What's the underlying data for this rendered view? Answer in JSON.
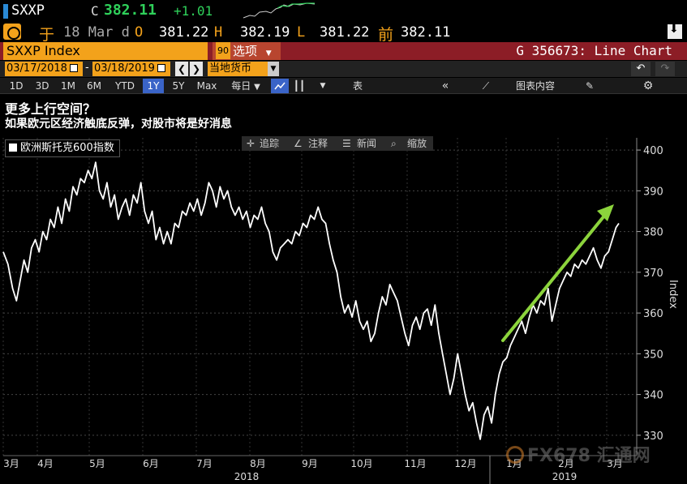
{
  "ticker": {
    "symbol": "SXXP",
    "close_label": "C",
    "price": "382.11",
    "change": "+1.01"
  },
  "quote": {
    "prefix": "于",
    "date": "18 Mar d",
    "open_label": "O",
    "open": "381.22",
    "high_label": "H",
    "high": "382.19",
    "low_label": "L",
    "low": "381.22",
    "prev_label": "前",
    "prev": "382.11"
  },
  "security": {
    "name": "SXXP Index",
    "options_num": "90",
    "options_label": "选项",
    "chart_code": "G 356673: Line Chart"
  },
  "dates": {
    "start": "03/17/2018",
    "end": "03/18/2019",
    "currency": "当地货币"
  },
  "toolbar": {
    "ranges": [
      "1D",
      "3D",
      "1M",
      "6M",
      "YTD",
      "1Y",
      "5Y",
      "Max"
    ],
    "selected_range": "1Y",
    "frequency": "每日",
    "table_label": "表",
    "chart_content_label": "图表内容"
  },
  "titles": {
    "title": "更多上行空间？",
    "subtitle": "如果欧元区经济触底反弹，对股市将是好消息"
  },
  "chart_tools": {
    "track": "追踪",
    "annotate": "注释",
    "news": "新闻",
    "zoom": "缩放"
  },
  "watermark": "FX678 汇通网",
  "colors": {
    "accent_orange": "#f3a21b",
    "security_bar": "#8c1d26",
    "up_green": "#2fd05a",
    "arrow_green": "#8cd43c",
    "selected_blue": "#3a64c8"
  },
  "chart_data": {
    "type": "line",
    "series": [
      {
        "name": "欧洲斯托克600指数",
        "points": [
          [
            0.0,
            375
          ],
          [
            0.5,
            372
          ],
          [
            1.0,
            366
          ],
          [
            1.4,
            363
          ],
          [
            1.8,
            368
          ],
          [
            2.2,
            373
          ],
          [
            2.6,
            370
          ],
          [
            3.0,
            376
          ],
          [
            3.4,
            378
          ],
          [
            3.8,
            375
          ],
          [
            4.2,
            380
          ],
          [
            4.6,
            378
          ],
          [
            5.0,
            383
          ],
          [
            5.4,
            381
          ],
          [
            5.8,
            386
          ],
          [
            6.2,
            382
          ],
          [
            6.6,
            388
          ],
          [
            7.0,
            385
          ],
          [
            7.4,
            391
          ],
          [
            7.8,
            389
          ],
          [
            8.2,
            393
          ],
          [
            8.6,
            392
          ],
          [
            9.0,
            395
          ],
          [
            9.4,
            393
          ],
          [
            9.8,
            397
          ],
          [
            10.2,
            390
          ],
          [
            10.6,
            388
          ],
          [
            11.0,
            392
          ],
          [
            11.4,
            386
          ],
          [
            11.8,
            389
          ],
          [
            12.2,
            383
          ],
          [
            12.6,
            386
          ],
          [
            13.0,
            388
          ],
          [
            13.4,
            384
          ],
          [
            13.8,
            389
          ],
          [
            14.2,
            387
          ],
          [
            14.6,
            392
          ],
          [
            15.0,
            385
          ],
          [
            15.4,
            382
          ],
          [
            15.8,
            385
          ],
          [
            16.2,
            378
          ],
          [
            16.6,
            381
          ],
          [
            17.0,
            377
          ],
          [
            17.4,
            380
          ],
          [
            17.8,
            377
          ],
          [
            18.2,
            382
          ],
          [
            18.6,
            381
          ],
          [
            19.0,
            385
          ],
          [
            19.4,
            384
          ],
          [
            19.8,
            387
          ],
          [
            20.2,
            385
          ],
          [
            20.6,
            388
          ],
          [
            21.0,
            384
          ],
          [
            21.4,
            387
          ],
          [
            21.8,
            392
          ],
          [
            22.2,
            390
          ],
          [
            22.6,
            386
          ],
          [
            23.0,
            391
          ],
          [
            23.4,
            388
          ],
          [
            23.8,
            390
          ],
          [
            24.2,
            386
          ],
          [
            24.6,
            384
          ],
          [
            25.0,
            386
          ],
          [
            25.4,
            383
          ],
          [
            25.8,
            385
          ],
          [
            26.2,
            381
          ],
          [
            26.6,
            384
          ],
          [
            27.0,
            383
          ],
          [
            27.4,
            386
          ],
          [
            27.8,
            382
          ],
          [
            28.2,
            380
          ],
          [
            28.6,
            375
          ],
          [
            29.0,
            373
          ],
          [
            29.4,
            376
          ],
          [
            29.8,
            377
          ],
          [
            30.2,
            378
          ],
          [
            30.6,
            377
          ],
          [
            31.0,
            380
          ],
          [
            31.4,
            379
          ],
          [
            31.8,
            382
          ],
          [
            32.2,
            381
          ],
          [
            32.6,
            384
          ],
          [
            33.0,
            383
          ],
          [
            33.4,
            386
          ],
          [
            33.8,
            383
          ],
          [
            34.2,
            382
          ],
          [
            34.6,
            377
          ],
          [
            35.0,
            373
          ],
          [
            35.4,
            370
          ],
          [
            35.8,
            364
          ],
          [
            36.2,
            360
          ],
          [
            36.6,
            362
          ],
          [
            37.0,
            359
          ],
          [
            37.4,
            363
          ],
          [
            37.8,
            358
          ],
          [
            38.2,
            356
          ],
          [
            38.6,
            358
          ],
          [
            39.0,
            353
          ],
          [
            39.4,
            355
          ],
          [
            39.8,
            360
          ],
          [
            40.2,
            364
          ],
          [
            40.6,
            362
          ],
          [
            41.0,
            367
          ],
          [
            41.4,
            365
          ],
          [
            41.8,
            363
          ],
          [
            42.2,
            359
          ],
          [
            42.6,
            355
          ],
          [
            43.0,
            352
          ],
          [
            43.4,
            357
          ],
          [
            43.8,
            359
          ],
          [
            44.2,
            356
          ],
          [
            44.6,
            360
          ],
          [
            45.0,
            361
          ],
          [
            45.4,
            357
          ],
          [
            45.8,
            362
          ],
          [
            46.2,
            355
          ],
          [
            46.6,
            350
          ],
          [
            47.0,
            345
          ],
          [
            47.4,
            340
          ],
          [
            47.8,
            344
          ],
          [
            48.2,
            350
          ],
          [
            48.6,
            345
          ],
          [
            49.0,
            340
          ],
          [
            49.4,
            336
          ],
          [
            49.8,
            338
          ],
          [
            50.2,
            333
          ],
          [
            50.6,
            329
          ],
          [
            51.0,
            335
          ],
          [
            51.4,
            337
          ],
          [
            51.8,
            333
          ],
          [
            52.2,
            340
          ],
          [
            52.6,
            345
          ],
          [
            53.0,
            348
          ],
          [
            53.4,
            349
          ],
          [
            53.8,
            352
          ],
          [
            54.2,
            354
          ],
          [
            54.6,
            356
          ],
          [
            55.0,
            358
          ],
          [
            55.4,
            355
          ],
          [
            55.8,
            359
          ],
          [
            56.2,
            362
          ],
          [
            56.6,
            360
          ],
          [
            57.0,
            363
          ],
          [
            57.4,
            362
          ],
          [
            57.8,
            366
          ],
          [
            58.2,
            358
          ],
          [
            58.6,
            362
          ],
          [
            59.0,
            366
          ],
          [
            59.4,
            368
          ],
          [
            59.8,
            370
          ],
          [
            60.2,
            369
          ],
          [
            60.6,
            372
          ],
          [
            61.0,
            371
          ],
          [
            61.4,
            373
          ],
          [
            61.8,
            372
          ],
          [
            62.2,
            374
          ],
          [
            62.6,
            376
          ],
          [
            63.0,
            373
          ],
          [
            63.4,
            371
          ],
          [
            63.8,
            374
          ],
          [
            64.2,
            375
          ],
          [
            64.6,
            378
          ],
          [
            65.0,
            381
          ],
          [
            65.3,
            382
          ]
        ]
      }
    ],
    "ylabel": "Index",
    "ylim": [
      325,
      403
    ],
    "yticks": [
      330,
      340,
      350,
      360,
      370,
      380,
      390,
      400
    ],
    "xmonths": [
      "3月",
      "4月",
      "5月",
      "6月",
      "7月",
      "8月",
      "9月",
      "10月",
      "11月",
      "12月",
      "1月",
      "2月",
      "3月"
    ],
    "years": [
      "2018",
      "2019"
    ],
    "legend_position": "top-left",
    "grid": true,
    "annotation": "green upward arrow from Dec low to March"
  }
}
